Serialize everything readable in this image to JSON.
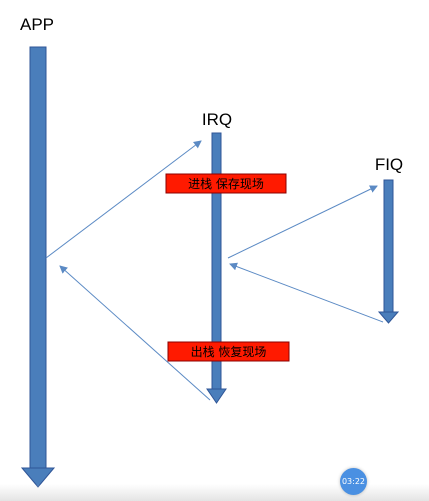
{
  "lanes": {
    "app": "APP",
    "irq": "IRQ",
    "fiq": "FIQ"
  },
  "boxes": {
    "push": "进栈 保存现场",
    "pop": "出栈 恢复现场"
  },
  "player": {
    "timer": "03:22"
  },
  "colors": {
    "bar_fill": "#4a7ebb",
    "bar_stroke": "#2f5597",
    "arrow_line": "#5b8ac4",
    "box_fill": "#ff1a00",
    "badge": "#4a90e2"
  }
}
